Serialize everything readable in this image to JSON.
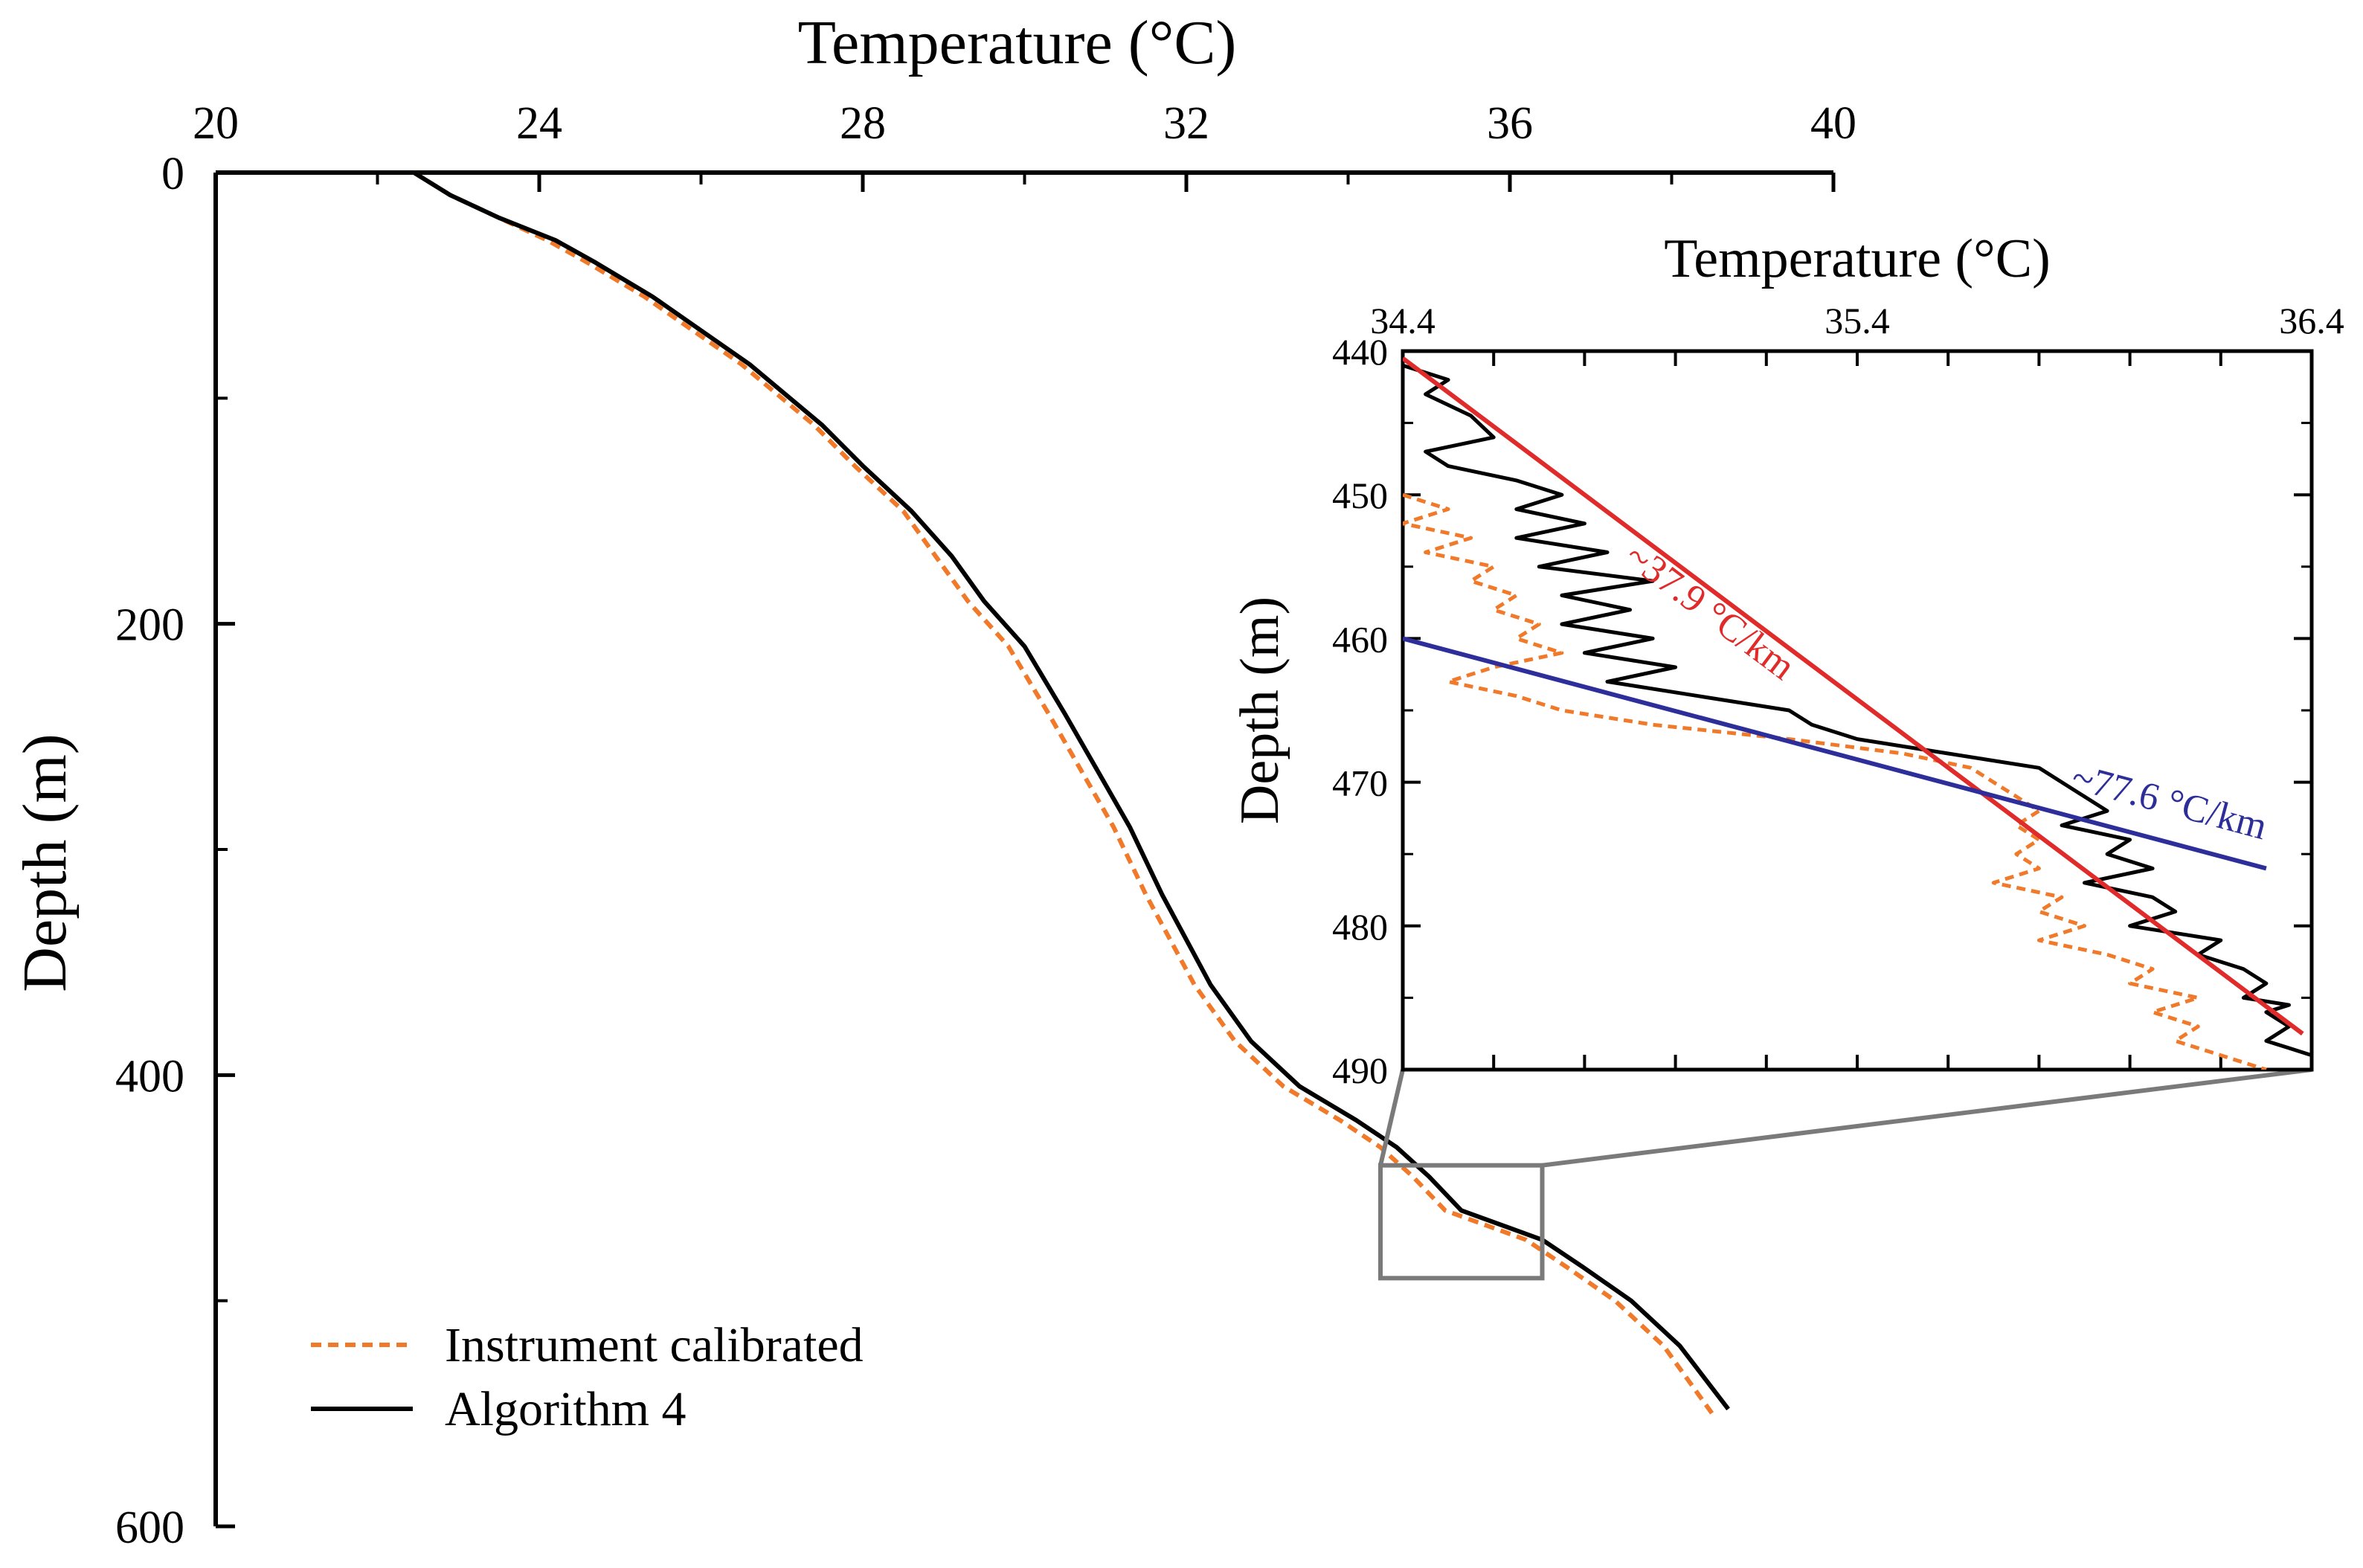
{
  "chart_data": [
    {
      "type": "line",
      "title": "",
      "xlabel": "Temperature (°C)",
      "ylabel": "Depth (m)",
      "xlim": [
        20,
        40
      ],
      "ylim": [
        0,
        600
      ],
      "y_inverted": true,
      "x_axis_position": "top",
      "xticks": [
        20,
        24,
        28,
        32,
        36,
        40
      ],
      "yticks": [
        0,
        200,
        400,
        600
      ],
      "legend": {
        "placement": "bottom-left",
        "entries": [
          "Instrument calibrated",
          "Algorithm 4"
        ]
      },
      "series": [
        {
          "name": "Algorithm 4",
          "color": "#000000",
          "style": "solid",
          "points": [
            [
              22.45,
              0
            ],
            [
              22.9,
              10
            ],
            [
              23.5,
              20
            ],
            [
              24.2,
              30
            ],
            [
              24.7,
              40
            ],
            [
              25.4,
              55
            ],
            [
              26.0,
              70
            ],
            [
              26.6,
              85
            ],
            [
              27.1,
              100
            ],
            [
              27.5,
              112
            ],
            [
              28.0,
              130
            ],
            [
              28.6,
              150
            ],
            [
              29.1,
              170
            ],
            [
              29.5,
              190
            ],
            [
              30.0,
              210
            ],
            [
              30.5,
              240
            ],
            [
              30.9,
              265
            ],
            [
              31.3,
              290
            ],
            [
              31.7,
              320
            ],
            [
              32.0,
              340
            ],
            [
              32.3,
              360
            ],
            [
              32.8,
              385
            ],
            [
              33.4,
              405
            ],
            [
              34.1,
              420
            ],
            [
              34.6,
              432
            ],
            [
              35.0,
              445
            ],
            [
              35.4,
              460
            ],
            [
              36.4,
              473
            ],
            [
              36.9,
              485
            ],
            [
              37.5,
              500
            ],
            [
              38.1,
              520
            ],
            [
              38.7,
              548
            ]
          ]
        },
        {
          "name": "Instrument calibrated",
          "color": "#f07a2a",
          "style": "dashed",
          "points": [
            [
              22.45,
              0
            ],
            [
              22.9,
              10
            ],
            [
              23.5,
              20
            ],
            [
              24.1,
              30
            ],
            [
              24.6,
              40
            ],
            [
              25.3,
              55
            ],
            [
              25.9,
              70
            ],
            [
              26.5,
              85
            ],
            [
              27.0,
              100
            ],
            [
              27.4,
              112
            ],
            [
              27.9,
              130
            ],
            [
              28.5,
              150
            ],
            [
              28.9,
              170
            ],
            [
              29.3,
              190
            ],
            [
              29.8,
              210
            ],
            [
              30.3,
              240
            ],
            [
              30.7,
              265
            ],
            [
              31.1,
              290
            ],
            [
              31.5,
              320
            ],
            [
              31.8,
              340
            ],
            [
              32.1,
              360
            ],
            [
              32.6,
              385
            ],
            [
              33.2,
              405
            ],
            [
              33.9,
              420
            ],
            [
              34.4,
              432
            ],
            [
              34.8,
              445
            ],
            [
              35.2,
              460
            ],
            [
              36.2,
              473
            ],
            [
              36.7,
              485
            ],
            [
              37.3,
              500
            ],
            [
              37.9,
              520
            ],
            [
              38.5,
              550
            ]
          ]
        }
      ],
      "zoom_box": {
        "x_range": [
          34.4,
          36.4
        ],
        "y_range": [
          440,
          490
        ]
      }
    },
    {
      "type": "line",
      "title": "",
      "xlabel": "Temperature (°C)",
      "ylabel": "Depth (m)",
      "xlim": [
        34.4,
        36.4
      ],
      "ylim": [
        440,
        490
      ],
      "y_inverted": true,
      "x_axis_position": "top",
      "xticks": [
        34.4,
        35.4,
        36.4
      ],
      "yticks": [
        440,
        450,
        460,
        470,
        480,
        490
      ],
      "series": [
        {
          "name": "Algorithm 4",
          "color": "#000000",
          "style": "solid",
          "points": [
            [
              34.4,
              441
            ],
            [
              34.5,
              442
            ],
            [
              34.45,
              443
            ],
            [
              34.55,
              444.5
            ],
            [
              34.6,
              446
            ],
            [
              34.45,
              447
            ],
            [
              34.5,
              448
            ],
            [
              34.65,
              449
            ],
            [
              34.75,
              450
            ],
            [
              34.65,
              451
            ],
            [
              34.8,
              452
            ],
            [
              34.65,
              453
            ],
            [
              34.85,
              454
            ],
            [
              34.7,
              455
            ],
            [
              34.95,
              456
            ],
            [
              34.75,
              457
            ],
            [
              34.9,
              458
            ],
            [
              34.75,
              459
            ],
            [
              34.95,
              460
            ],
            [
              34.8,
              461
            ],
            [
              35.0,
              462
            ],
            [
              34.85,
              463
            ],
            [
              35.05,
              464
            ],
            [
              35.25,
              465
            ],
            [
              35.3,
              466
            ],
            [
              35.4,
              467
            ],
            [
              35.6,
              468
            ],
            [
              35.8,
              469
            ],
            [
              35.85,
              470
            ],
            [
              35.9,
              471
            ],
            [
              35.95,
              472
            ],
            [
              35.85,
              473
            ],
            [
              36.0,
              474
            ],
            [
              35.95,
              475
            ],
            [
              36.05,
              476
            ],
            [
              35.9,
              477
            ],
            [
              36.05,
              478
            ],
            [
              36.1,
              479
            ],
            [
              36.0,
              480
            ],
            [
              36.2,
              481
            ],
            [
              36.15,
              482
            ],
            [
              36.25,
              483
            ],
            [
              36.3,
              484
            ],
            [
              36.25,
              485
            ],
            [
              36.35,
              485.5
            ],
            [
              36.3,
              486
            ],
            [
              36.35,
              487
            ],
            [
              36.3,
              488
            ],
            [
              36.35,
              488.5
            ],
            [
              36.4,
              489
            ],
            [
              36.4,
              490
            ]
          ]
        },
        {
          "name": "Instrument calibrated",
          "color": "#f07a2a",
          "style": "dashed",
          "points": [
            [
              34.4,
              450
            ],
            [
              34.5,
              451
            ],
            [
              34.4,
              452
            ],
            [
              34.55,
              453
            ],
            [
              34.45,
              454
            ],
            [
              34.6,
              455
            ],
            [
              34.55,
              456
            ],
            [
              34.65,
              457
            ],
            [
              34.6,
              458
            ],
            [
              34.7,
              459
            ],
            [
              34.65,
              460
            ],
            [
              34.75,
              461
            ],
            [
              34.6,
              462
            ],
            [
              34.5,
              463
            ],
            [
              34.65,
              464
            ],
            [
              34.75,
              465
            ],
            [
              34.95,
              466
            ],
            [
              35.25,
              467
            ],
            [
              35.5,
              468
            ],
            [
              35.65,
              469
            ],
            [
              35.7,
              470
            ],
            [
              35.75,
              471
            ],
            [
              35.8,
              472
            ],
            [
              35.75,
              473
            ],
            [
              35.8,
              474
            ],
            [
              35.75,
              475
            ],
            [
              35.8,
              476
            ],
            [
              35.7,
              477
            ],
            [
              35.85,
              478
            ],
            [
              35.8,
              479
            ],
            [
              35.9,
              480
            ],
            [
              35.8,
              481
            ],
            [
              35.95,
              482
            ],
            [
              36.05,
              483
            ],
            [
              36.0,
              484
            ],
            [
              36.15,
              485
            ],
            [
              36.05,
              486
            ],
            [
              36.15,
              487
            ],
            [
              36.1,
              488
            ],
            [
              36.2,
              489
            ],
            [
              36.3,
              490
            ]
          ]
        }
      ],
      "trend_lines": [
        {
          "label": "~37.9 °C/km",
          "color": "#e02b2b",
          "from": [
            34.4,
            440.5
          ],
          "to": [
            36.38,
            487.5
          ],
          "label_at": [
            35.06,
            458.8
          ]
        },
        {
          "label": "~77.6 °C/km",
          "color": "#2e2e9a",
          "from": [
            34.4,
            460.0
          ],
          "to": [
            36.3,
            476.0
          ],
          "label_at": [
            36.08,
            472.2
          ]
        }
      ]
    }
  ]
}
